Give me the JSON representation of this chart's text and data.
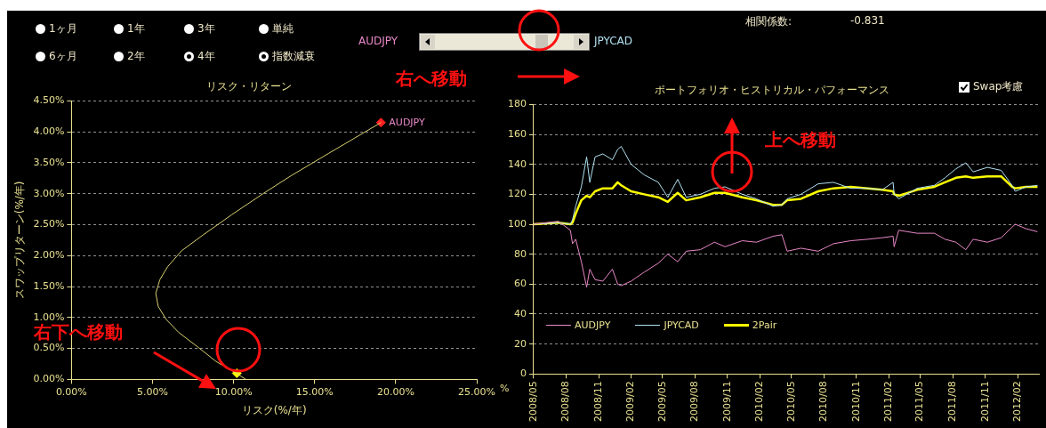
{
  "chart_data": [
    {
      "type": "other",
      "annotations": [
        "1ヶ月",
        "1年",
        "3年",
        "単純",
        "6ヶ月",
        "2年",
        "4年",
        "指数減衰",
        "AUDJPY",
        "JPYCAD",
        "相関係数:",
        "-0.831",
        "右へ移動"
      ]
    },
    {
      "type": "line",
      "title": "リスク・リターン",
      "xlabel": "リスク(%/年)",
      "ylabel": "スワップリターン(%/年)",
      "xlim": [
        0,
        25
      ],
      "ylim": [
        0,
        4.5
      ],
      "xticks": [
        {
          "value": 0,
          "label": "0.00%"
        },
        {
          "value": 5,
          "label": "5.00%"
        },
        {
          "value": 10,
          "label": "10.00%"
        },
        {
          "value": 15,
          "label": "15.00%"
        },
        {
          "value": 20,
          "label": "20.00%"
        },
        {
          "value": 25,
          "label": "25.00%"
        }
      ],
      "yticks": [
        {
          "value": 0,
          "label": "0.00%"
        },
        {
          "value": 0.5,
          "label": "0.50%"
        },
        {
          "value": 1,
          "label": "1.00%"
        },
        {
          "value": 1.5,
          "label": "1.50%"
        },
        {
          "value": 2,
          "label": "2.00%"
        },
        {
          "value": 2.5,
          "label": "2.50%"
        },
        {
          "value": 3,
          "label": "3.00%"
        },
        {
          "value": 3.5,
          "label": "3.50%"
        },
        {
          "value": 4,
          "label": "4.00%"
        },
        {
          "value": 4.5,
          "label": "4.50%"
        }
      ],
      "grid": "y",
      "annotations": [
        "右下へ移動"
      ],
      "series": [
        {
          "type": "line",
          "color": "#d8d070",
          "x": [
            19.09,
            15.85,
            13.54,
            11.81,
            9.88,
            8.15,
            6.8,
            5.93,
            5.45,
            5.2,
            5.35,
            5.84,
            6.61,
            7.76,
            8.92,
            10.23,
            10.75
          ],
          "values": [
            4.15,
            3.65,
            3.29,
            3.0,
            2.66,
            2.34,
            2.08,
            1.82,
            1.61,
            1.39,
            1.18,
            0.97,
            0.76,
            0.53,
            0.29,
            0.09,
            0.0
          ]
        },
        {
          "name": "AUDJPY",
          "type": "scatter",
          "marker": "diamond",
          "color": "#ff2020",
          "x": [
            19.09
          ],
          "values": [
            4.15
          ]
        },
        {
          "type": "scatter",
          "marker": "diamond",
          "color": "#ffff00",
          "x": [
            10.2
          ],
          "values": [
            0.1
          ]
        }
      ]
    },
    {
      "type": "line",
      "title": "ポートフォリオ・ヒストリカル・パフォーマンス",
      "ylabel": "%",
      "xlim": [
        "2008-05-01",
        "2012-04-01"
      ],
      "ylim": [
        0,
        180
      ],
      "xticks": [
        {
          "value": "2008-05-01",
          "label": "2008/05"
        },
        {
          "value": "2008-08-01",
          "label": "2008/08"
        },
        {
          "value": "2008-11-01",
          "label": "2008/11"
        },
        {
          "value": "2009-02-01",
          "label": "2009/02"
        },
        {
          "value": "2009-05-01",
          "label": "2009/05"
        },
        {
          "value": "2009-08-01",
          "label": "2009/08"
        },
        {
          "value": "2009-11-01",
          "label": "2009/11"
        },
        {
          "value": "2010-02-01",
          "label": "2010/02"
        },
        {
          "value": "2010-05-01",
          "label": "2010/05"
        },
        {
          "value": "2010-08-01",
          "label": "2010/08"
        },
        {
          "value": "2010-11-01",
          "label": "2010/11"
        },
        {
          "value": "2011-02-01",
          "label": "2011/02"
        },
        {
          "value": "2011-05-01",
          "label": "2011/05"
        },
        {
          "value": "2011-08-01",
          "label": "2011/08"
        },
        {
          "value": "2011-11-01",
          "label": "2011/11"
        },
        {
          "value": "2012-02-01",
          "label": "2012/02"
        }
      ],
      "yticks": [
        0,
        20,
        40,
        60,
        80,
        100,
        120,
        140,
        160,
        180
      ],
      "grid": "y",
      "legend": "bottom left",
      "annotations": [
        "上へ移動",
        "Swap考慮"
      ],
      "x": [
        "2008-05-01",
        "2008-07-10",
        "2008-08-13",
        "2008-08-19",
        "2008-08-28",
        "2008-09-13",
        "2008-09-28",
        "2008-10-07",
        "2008-10-22",
        "2008-11-13",
        "2008-12-10",
        "2008-12-25",
        "2009-01-04",
        "2009-02-01",
        "2009-03-10",
        "2009-04-19",
        "2009-05-16",
        "2009-06-13",
        "2009-07-07",
        "2009-08-16",
        "2009-09-25",
        "2009-10-25",
        "2009-12-13",
        "2010-01-22",
        "2010-03-10",
        "2010-04-04",
        "2010-04-19",
        "2010-05-28",
        "2010-07-16",
        "2010-08-28",
        "2010-10-16",
        "2010-12-04",
        "2011-01-13",
        "2011-02-13",
        "2011-02-16",
        "2011-03-01",
        "2011-04-22",
        "2011-06-10",
        "2011-07-10",
        "2011-08-10",
        "2011-09-07",
        "2011-09-28",
        "2011-11-07",
        "2011-12-16",
        "2012-01-16",
        "2012-01-25",
        "2012-02-25",
        "2012-03-28"
      ],
      "series": [
        {
          "name": "AUDJPY",
          "color": "#e888c8",
          "values": [
            100,
            102,
            96,
            87,
            90,
            75,
            58,
            70,
            63,
            62,
            70,
            60,
            59,
            62,
            68,
            74,
            80,
            75,
            82,
            83,
            88,
            85,
            89,
            88,
            92,
            93,
            82,
            84,
            82,
            87,
            89,
            90,
            91,
            92,
            85,
            96,
            94,
            94,
            90,
            88,
            83,
            90,
            88,
            91,
            98,
            100,
            97,
            95
          ]
        },
        {
          "name": "JPYCAD",
          "color": "#b0e0f0",
          "values": [
            100,
            101,
            100,
            103,
            112,
            125,
            145,
            128,
            145,
            147,
            143,
            150,
            152,
            140,
            133,
            128,
            118,
            130,
            118,
            120,
            124,
            125,
            120,
            117,
            112,
            113,
            117,
            120,
            127,
            128,
            124,
            124,
            123,
            128,
            120,
            117,
            124,
            126,
            131,
            137,
            141,
            135,
            138,
            136,
            126,
            122,
            125,
            126
          ]
        },
        {
          "name": "2Pair",
          "color": "#ffff00",
          "values": [
            100,
            101,
            100,
            101,
            107,
            116,
            119,
            118,
            122,
            124,
            124,
            128,
            126,
            122,
            120,
            118,
            115,
            121,
            116,
            118,
            121,
            121,
            118,
            116,
            113,
            113,
            116,
            117,
            122,
            124,
            125,
            124,
            123,
            122,
            120,
            119,
            123,
            125,
            128,
            131,
            132,
            131,
            132,
            132,
            125,
            124,
            125,
            125
          ]
        }
      ]
    }
  ]
}
